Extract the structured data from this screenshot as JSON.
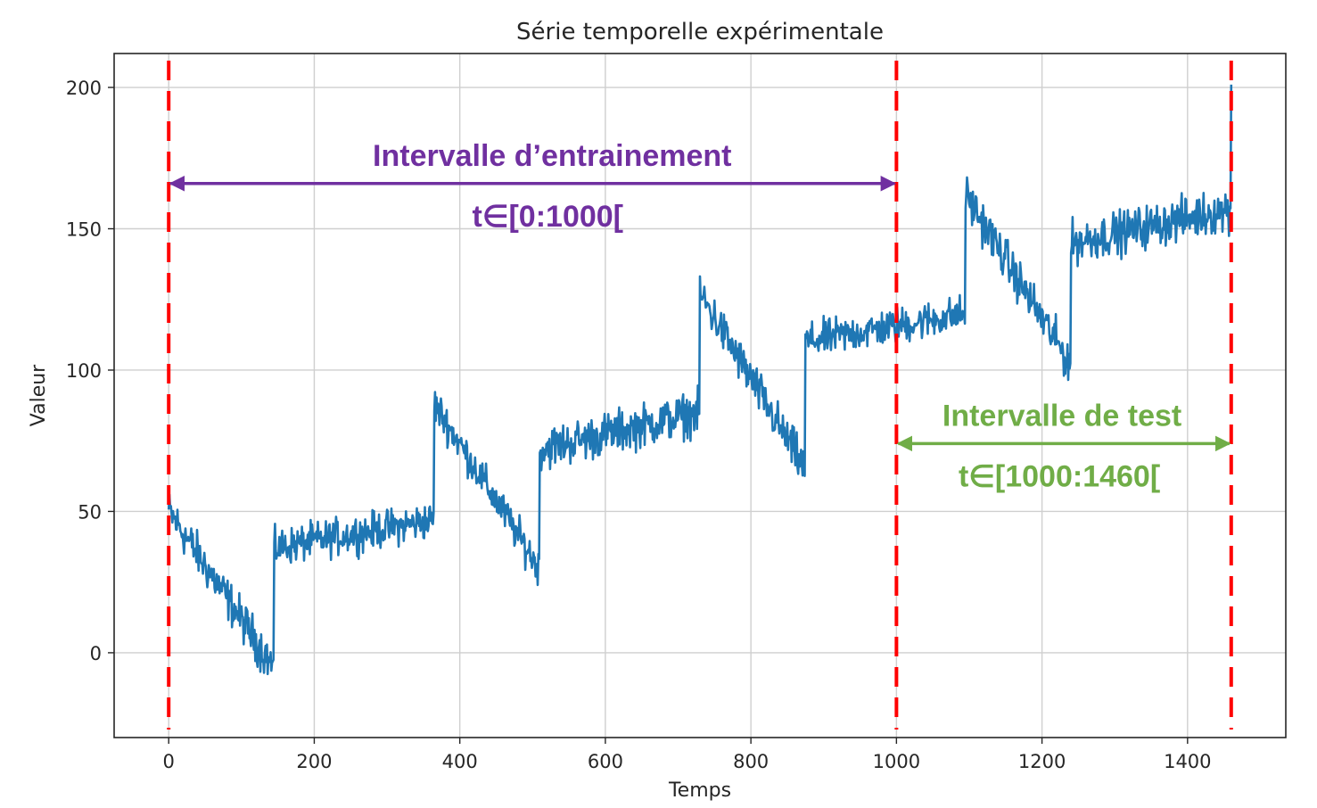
{
  "chart_data": {
    "type": "line",
    "title": "Série temporelle expérimentale",
    "xlabel": "Temps",
    "ylabel": "Valeur",
    "xlim": [
      -75,
      1535
    ],
    "ylim": [
      -30,
      212
    ],
    "xticks": [
      0,
      200,
      400,
      600,
      800,
      1000,
      1200,
      1400
    ],
    "yticks": [
      0,
      50,
      100,
      150,
      200
    ],
    "grid": true,
    "line_color": "#1f77b4",
    "series": [
      {
        "segments": [
          {
            "x0": 0,
            "x1": 144,
            "y0": 50,
            "y1": -5,
            "noise": 7
          },
          {
            "x0": 145,
            "x1": 364,
            "y0": 37,
            "y1": 47,
            "noise": 6
          },
          {
            "x0": 365,
            "x1": 509,
            "y0": 88,
            "y1": 30,
            "noise": 6
          },
          {
            "x0": 510,
            "x1": 729,
            "y0": 72,
            "y1": 85,
            "noise": 7
          },
          {
            "x0": 730,
            "x1": 874,
            "y0": 127,
            "y1": 65,
            "noise": 7
          },
          {
            "x0": 875,
            "x1": 1094,
            "y0": 110,
            "y1": 120,
            "noise": 6
          },
          {
            "x0": 1095,
            "x1": 1239,
            "y0": 162,
            "y1": 102,
            "noise": 7
          },
          {
            "x0": 1240,
            "x1": 1459,
            "y0": 145,
            "y1": 157,
            "noise": 7
          }
        ],
        "end_spike": {
          "x": 1460,
          "y": 201
        }
      }
    ],
    "vlines": [
      {
        "x": 0,
        "color": "#ff0000",
        "style": "dashed"
      },
      {
        "x": 1000,
        "color": "#ff0000",
        "style": "dashed"
      },
      {
        "x": 1460,
        "color": "#ff0000",
        "style": "dashed"
      }
    ],
    "annotations": [
      {
        "key": "train",
        "text": "Intervalle d’entrainement",
        "subtext": "t∈[0:1000[",
        "x_from": 0,
        "x_to": 1000,
        "y_arrow": 166,
        "color": "#7030a0"
      },
      {
        "key": "test",
        "text": "Intervalle de test",
        "subtext": "t∈[1000:1460[",
        "x_from": 1000,
        "x_to": 1460,
        "y_arrow": 74,
        "color": "#70ad47"
      }
    ]
  }
}
